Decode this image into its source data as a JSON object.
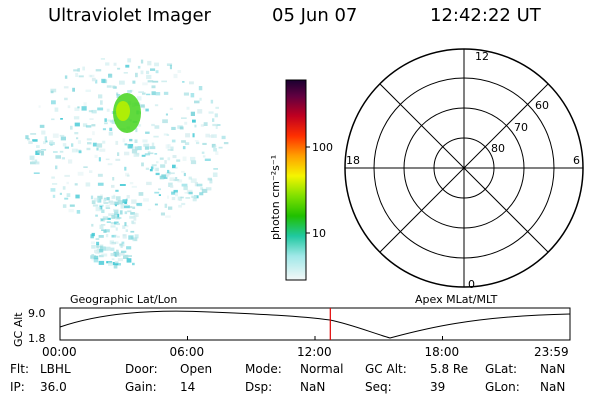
{
  "header": {
    "title": "Ultraviolet Imager",
    "date": "05 Jun 07",
    "time": "12:42:22 UT"
  },
  "colorbar": {
    "label": "photon cm⁻²s⁻¹",
    "ticks": [
      "100",
      "10"
    ]
  },
  "polar_plot": {
    "mlt_labels": {
      "top": "12",
      "left": "18",
      "right": "6",
      "bottom": "0"
    },
    "lat_labels": [
      "60",
      "70",
      "80"
    ]
  },
  "orbit_plot": {
    "y_axis_label": "GC Alt",
    "y_max_label": "9.0",
    "y_min_label": "1.8",
    "left_title": "Geographic Lat/Lon",
    "right_title": "Apex MLat/MLT",
    "x_ticks": [
      "00:00",
      "06:00",
      "12:00",
      "18:00",
      "23:59"
    ],
    "current_time_fraction": 0.53
  },
  "info_fields": [
    {
      "label": "Flt:",
      "value": "LBHL"
    },
    {
      "label": "Door:",
      "value": "Open"
    },
    {
      "label": "Mode:",
      "value": "Normal"
    },
    {
      "label": "GC Alt:",
      "value": "5.8 Re"
    },
    {
      "label": "GLat:",
      "value": "NaN"
    },
    {
      "label": "IP:",
      "value": "36.0"
    },
    {
      "label": "Gain:",
      "value": "14"
    },
    {
      "label": "Dsp:",
      "value": "NaN"
    },
    {
      "label": "Seq:",
      "value": "39"
    },
    {
      "label": "GLon:",
      "value": "NaN"
    }
  ]
}
